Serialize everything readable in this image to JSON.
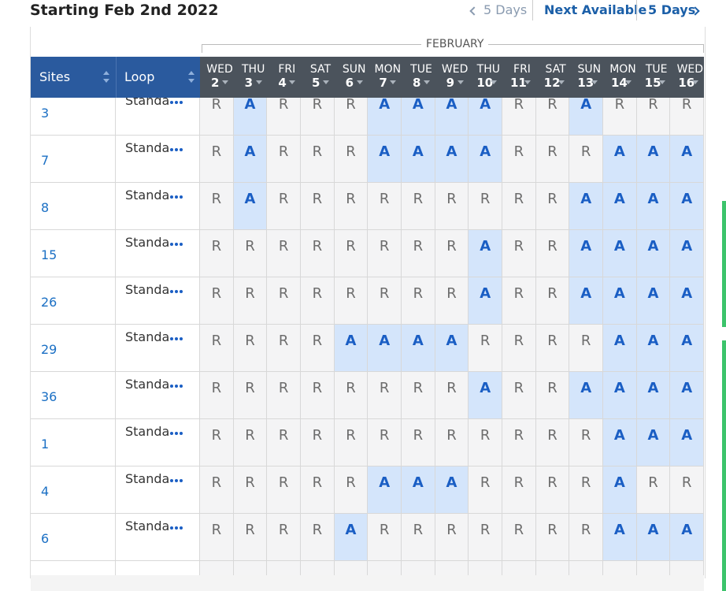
{
  "header": {
    "title": "Starting Feb 2nd 2022",
    "prev": "5 Days",
    "next_available": "Next Available",
    "next": "5 Days"
  },
  "table": {
    "month": "FEBRUARY",
    "columns": {
      "sites": "Sites",
      "loop": "Loop"
    },
    "days": [
      {
        "name": "WED",
        "date": "2"
      },
      {
        "name": "THU",
        "date": "3"
      },
      {
        "name": "FRI",
        "date": "4"
      },
      {
        "name": "SAT",
        "date": "5"
      },
      {
        "name": "SUN",
        "date": "6"
      },
      {
        "name": "MON",
        "date": "7"
      },
      {
        "name": "TUE",
        "date": "8"
      },
      {
        "name": "WED",
        "date": "9"
      },
      {
        "name": "THU",
        "date": "10"
      },
      {
        "name": "FRI",
        "date": "11"
      },
      {
        "name": "SAT",
        "date": "12"
      },
      {
        "name": "SUN",
        "date": "13"
      },
      {
        "name": "MON",
        "date": "14"
      },
      {
        "name": "TUE",
        "date": "15"
      },
      {
        "name": "WED",
        "date": "16"
      }
    ],
    "rows": [
      {
        "site": "3",
        "loop": "Standa",
        "cells": [
          "R",
          "A",
          "R",
          "R",
          "R",
          "A",
          "A",
          "A",
          "A",
          "R",
          "R",
          "A",
          "R",
          "R",
          "R"
        ]
      },
      {
        "site": "7",
        "loop": "Standa",
        "cells": [
          "R",
          "A",
          "R",
          "R",
          "R",
          "A",
          "A",
          "A",
          "A",
          "R",
          "R",
          "R",
          "A",
          "A",
          "A"
        ]
      },
      {
        "site": "8",
        "loop": "Standa",
        "cells": [
          "R",
          "A",
          "R",
          "R",
          "R",
          "R",
          "R",
          "R",
          "R",
          "R",
          "R",
          "A",
          "A",
          "A",
          "A"
        ]
      },
      {
        "site": "15",
        "loop": "Standa",
        "cells": [
          "R",
          "R",
          "R",
          "R",
          "R",
          "R",
          "R",
          "R",
          "A",
          "R",
          "R",
          "A",
          "A",
          "A",
          "A"
        ]
      },
      {
        "site": "26",
        "loop": "Standa",
        "cells": [
          "R",
          "R",
          "R",
          "R",
          "R",
          "R",
          "R",
          "R",
          "A",
          "R",
          "R",
          "A",
          "A",
          "A",
          "A"
        ]
      },
      {
        "site": "29",
        "loop": "Standa",
        "cells": [
          "R",
          "R",
          "R",
          "R",
          "A",
          "A",
          "A",
          "A",
          "R",
          "R",
          "R",
          "R",
          "A",
          "A",
          "A"
        ]
      },
      {
        "site": "36",
        "loop": "Standa",
        "cells": [
          "R",
          "R",
          "R",
          "R",
          "R",
          "R",
          "R",
          "R",
          "A",
          "R",
          "R",
          "A",
          "A",
          "A",
          "A"
        ]
      },
      {
        "site": "1",
        "loop": "Standa",
        "cells": [
          "R",
          "R",
          "R",
          "R",
          "R",
          "R",
          "R",
          "R",
          "R",
          "R",
          "R",
          "R",
          "A",
          "A",
          "A"
        ]
      },
      {
        "site": "4",
        "loop": "Standa",
        "cells": [
          "R",
          "R",
          "R",
          "R",
          "R",
          "A",
          "A",
          "A",
          "R",
          "R",
          "R",
          "R",
          "A",
          "R",
          "R"
        ]
      },
      {
        "site": "6",
        "loop": "Standa",
        "cells": [
          "R",
          "R",
          "R",
          "R",
          "A",
          "R",
          "R",
          "R",
          "R",
          "R",
          "R",
          "R",
          "A",
          "A",
          "A"
        ]
      }
    ]
  }
}
